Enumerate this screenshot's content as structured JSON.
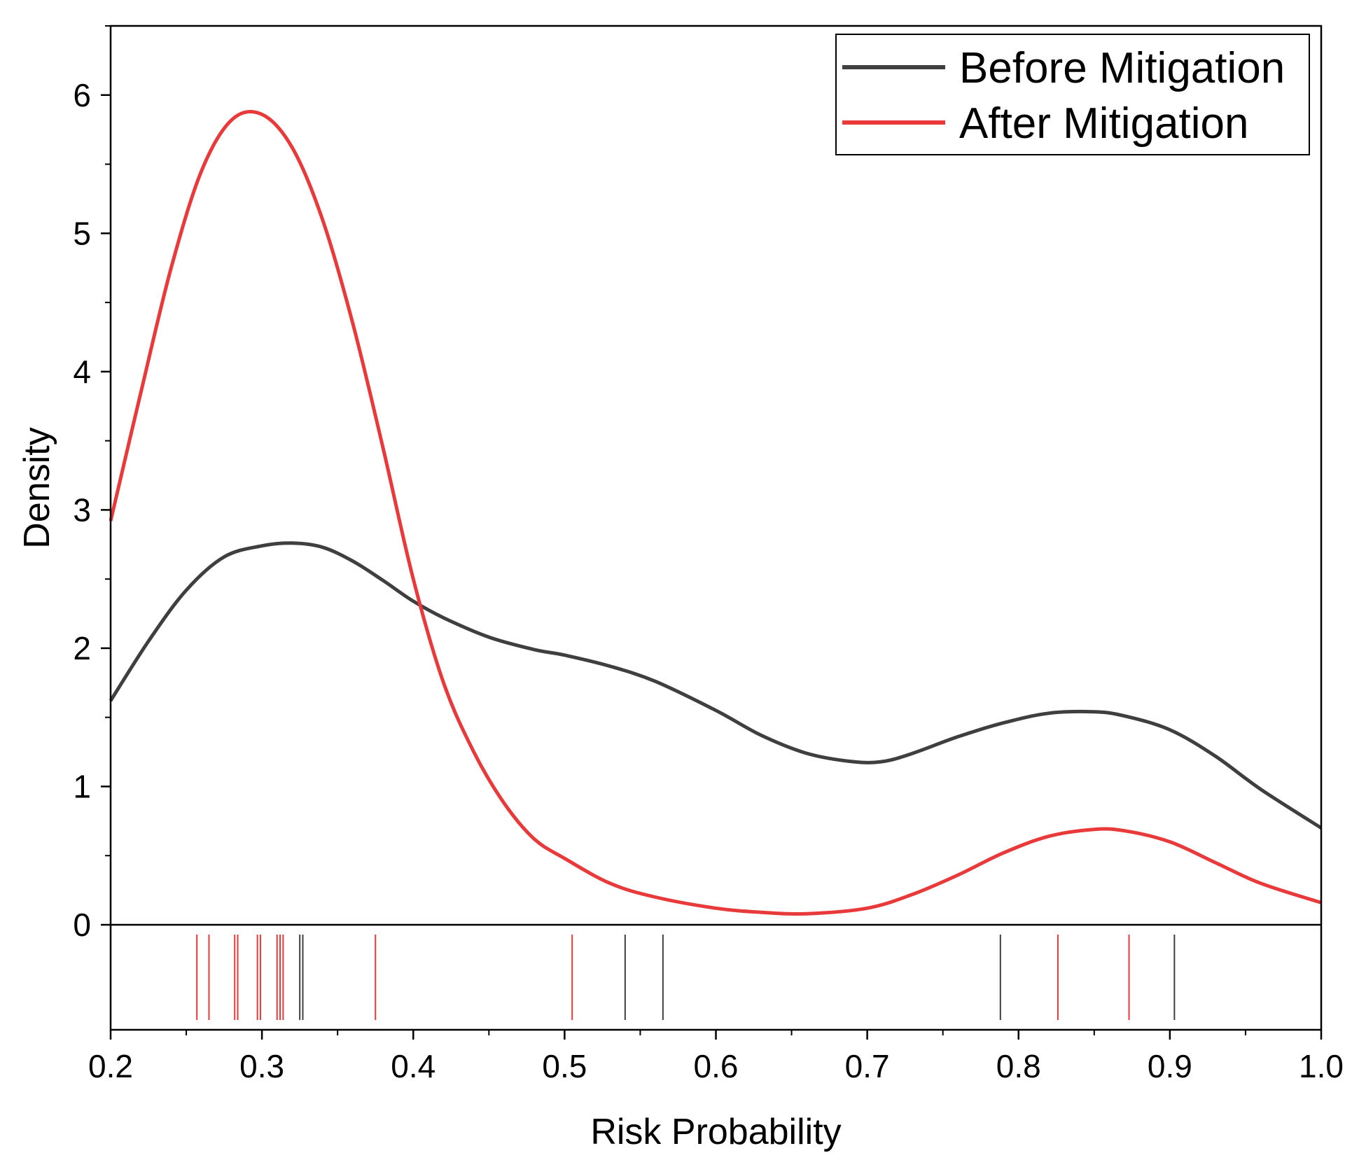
{
  "chart_data": {
    "type": "line",
    "title": "",
    "xlabel": "Risk Probability",
    "ylabel": "Density",
    "xlim": [
      0.2,
      1.0
    ],
    "ylim": [
      0,
      6.5
    ],
    "x_ticks": [
      0.2,
      0.3,
      0.4,
      0.5,
      0.6,
      0.7,
      0.8,
      0.9,
      1.0
    ],
    "x_tick_labels": [
      "0.2",
      "0.3",
      "0.4",
      "0.5",
      "0.6",
      "0.7",
      "0.8",
      "0.9",
      "1.0"
    ],
    "y_ticks": [
      0,
      1,
      2,
      3,
      4,
      5,
      6
    ],
    "y_tick_labels": [
      "0",
      "1",
      "2",
      "3",
      "4",
      "5",
      "6"
    ],
    "grid": false,
    "legend_position": "top-right",
    "series": [
      {
        "name": "Before Mitigation",
        "color": "#3f3f3f",
        "x": [
          0.2,
          0.225,
          0.25,
          0.275,
          0.3,
          0.32,
          0.34,
          0.36,
          0.38,
          0.4,
          0.42,
          0.45,
          0.48,
          0.5,
          0.53,
          0.56,
          0.6,
          0.63,
          0.66,
          0.69,
          0.71,
          0.73,
          0.76,
          0.79,
          0.82,
          0.85,
          0.87,
          0.9,
          0.93,
          0.96,
          1.0
        ],
        "y": [
          1.62,
          2.05,
          2.42,
          2.66,
          2.74,
          2.76,
          2.73,
          2.63,
          2.49,
          2.34,
          2.22,
          2.08,
          1.99,
          1.95,
          1.87,
          1.76,
          1.55,
          1.37,
          1.24,
          1.18,
          1.18,
          1.24,
          1.36,
          1.46,
          1.53,
          1.54,
          1.51,
          1.41,
          1.22,
          0.98,
          0.7
        ]
      },
      {
        "name": "After Mitigation",
        "color": "#e8393b",
        "x": [
          0.2,
          0.22,
          0.24,
          0.26,
          0.28,
          0.3,
          0.32,
          0.34,
          0.36,
          0.38,
          0.4,
          0.42,
          0.44,
          0.46,
          0.48,
          0.5,
          0.53,
          0.56,
          0.6,
          0.63,
          0.66,
          0.7,
          0.73,
          0.76,
          0.79,
          0.82,
          0.85,
          0.87,
          0.9,
          0.93,
          0.96,
          1.0
        ],
        "y": [
          2.92,
          3.85,
          4.75,
          5.45,
          5.82,
          5.86,
          5.62,
          5.1,
          4.35,
          3.45,
          2.5,
          1.75,
          1.25,
          0.88,
          0.62,
          0.48,
          0.3,
          0.2,
          0.12,
          0.09,
          0.08,
          0.12,
          0.22,
          0.36,
          0.52,
          0.64,
          0.69,
          0.68,
          0.6,
          0.45,
          0.3,
          0.16
        ]
      }
    ],
    "rug": [
      {
        "series": "After Mitigation",
        "values": [
          0.257,
          0.265,
          0.282,
          0.284,
          0.297,
          0.299,
          0.31,
          0.312,
          0.314,
          0.375,
          0.505,
          0.826,
          0.873
        ]
      },
      {
        "series": "Before Mitigation",
        "values": [
          0.325,
          0.327,
          0.54,
          0.565,
          0.788,
          0.903
        ]
      }
    ]
  }
}
